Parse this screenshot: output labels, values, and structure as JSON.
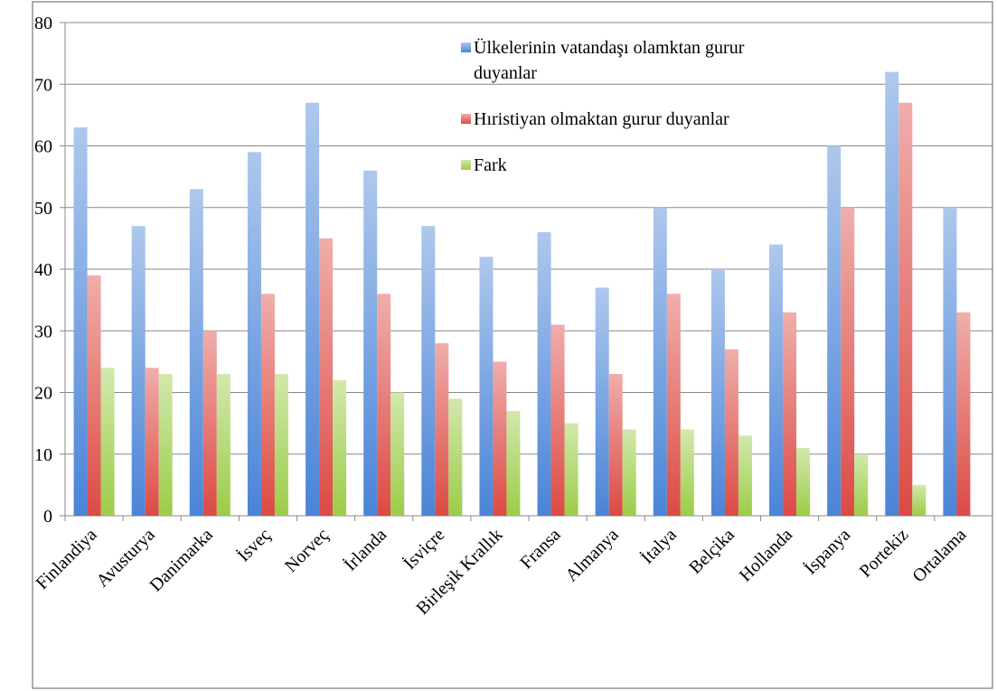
{
  "chart_data": {
    "type": "bar",
    "categories": [
      "Finlandiya",
      "Avusturya",
      "Danimarka",
      "İsveç",
      "Norveç",
      "İrlanda",
      "İsviçre",
      "Birleşik Krallık",
      "Fransa",
      "Almanya",
      "İtalya",
      "Belçika",
      "Hollanda",
      "İspanya",
      "Portekiz",
      "Ortalama"
    ],
    "series": [
      {
        "name": "Ülkelerinin vatandaşı olamktan gurur duyanlar",
        "color": "#4a84d8",
        "values": [
          63,
          47,
          53,
          59,
          67,
          56,
          47,
          42,
          46,
          37,
          50,
          40,
          44,
          60,
          72,
          50
        ]
      },
      {
        "name": "Hıristiyan olmaktan gurur duyanlar",
        "color": "#dc4a44",
        "values": [
          39,
          24,
          30,
          36,
          45,
          36,
          28,
          25,
          31,
          23,
          36,
          27,
          33,
          50,
          67,
          33
        ]
      },
      {
        "name": "Fark",
        "color": "#9ccc48",
        "values": [
          24,
          23,
          23,
          23,
          22,
          20,
          19,
          17,
          15,
          14,
          14,
          13,
          11,
          10,
          5,
          null
        ]
      }
    ],
    "ylim": [
      0,
      80
    ],
    "yticks": [
      0,
      10,
      20,
      30,
      40,
      50,
      60,
      70,
      80
    ],
    "grid": true,
    "legend": "top-center"
  }
}
